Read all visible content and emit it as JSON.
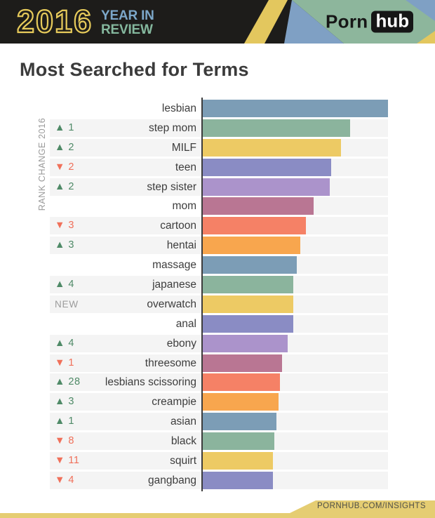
{
  "header": {
    "year": "2016",
    "title_line1": "YEAR IN",
    "title_line2": "REVIEW",
    "logo_porn": "Porn",
    "logo_hub": "hub",
    "colors": {
      "background": "#1d1c1a",
      "year_yellow": "#e7cb5b",
      "year_in_blue": "#7ca7c9",
      "review_green": "#85b89e",
      "deco_green": "#8db69c",
      "deco_blue": "#7fa0c4",
      "deco_yellow": "#e3c75e"
    }
  },
  "page_title": "Most Searched for Terms",
  "footer": {
    "text": "PORNHUB.COM/INSIGHTS",
    "background": "#e5cd72",
    "text_color": "#4f4f47"
  },
  "chart_data": {
    "type": "bar",
    "orientation": "horizontal",
    "title": "Most Searched for Terms",
    "axis_label": "RANK CHANGE 2016",
    "value_meaning": "relative search volume, % of top term (estimated from bar lengths)",
    "xlim": [
      0,
      100
    ],
    "grid": false,
    "track_color": "#f4f4f4",
    "axis_line_color": "#3d3d3d",
    "indicator_colors": {
      "up": "#4f8a67",
      "down": "#f0705a",
      "new": "#9b9b9b"
    },
    "glyphs": {
      "up": "▲",
      "down": "▼",
      "new_label": "NEW"
    },
    "palette": [
      "#7c9db6",
      "#8bb49d",
      "#edca64",
      "#8a8cc4",
      "#ab93cb",
      "#b97693",
      "#f58166",
      "#f8a64e"
    ],
    "rows": [
      {
        "term": "lesbian",
        "rank_change": null,
        "value": 100,
        "color": "#7c9db6"
      },
      {
        "term": "step mom",
        "rank_change": {
          "direction": "up",
          "amount": 1
        },
        "value": 79.5,
        "color": "#8bb49d"
      },
      {
        "term": "MILF",
        "rank_change": {
          "direction": "up",
          "amount": 2
        },
        "value": 74.6,
        "color": "#edca64"
      },
      {
        "term": "teen",
        "rank_change": {
          "direction": "down",
          "amount": 2
        },
        "value": 69.3,
        "color": "#8a8cc4"
      },
      {
        "term": "step sister",
        "rank_change": {
          "direction": "up",
          "amount": 2
        },
        "value": 68.6,
        "color": "#ab93cb"
      },
      {
        "term": "mom",
        "rank_change": null,
        "value": 59.8,
        "color": "#b97693"
      },
      {
        "term": "cartoon",
        "rank_change": {
          "direction": "down",
          "amount": 3
        },
        "value": 55.7,
        "color": "#f58166"
      },
      {
        "term": "hentai",
        "rank_change": {
          "direction": "up",
          "amount": 3
        },
        "value": 52.7,
        "color": "#f8a64e"
      },
      {
        "term": "massage",
        "rank_change": null,
        "value": 50.8,
        "color": "#7c9db6"
      },
      {
        "term": "japanese",
        "rank_change": {
          "direction": "up",
          "amount": 4
        },
        "value": 48.9,
        "color": "#8bb49d"
      },
      {
        "term": "overwatch",
        "rank_change": {
          "direction": "new"
        },
        "value": 48.9,
        "color": "#edca64"
      },
      {
        "term": "anal",
        "rank_change": null,
        "value": 48.9,
        "color": "#8a8cc4"
      },
      {
        "term": "ebony",
        "rank_change": {
          "direction": "up",
          "amount": 4
        },
        "value": 45.8,
        "color": "#ab93cb"
      },
      {
        "term": "threesome",
        "rank_change": {
          "direction": "down",
          "amount": 1
        },
        "value": 42.8,
        "color": "#b97693"
      },
      {
        "term": "lesbians scissoring",
        "rank_change": {
          "direction": "up",
          "amount": 28
        },
        "value": 41.7,
        "color": "#f58166"
      },
      {
        "term": "creampie",
        "rank_change": {
          "direction": "up",
          "amount": 3
        },
        "value": 40.9,
        "color": "#f8a64e"
      },
      {
        "term": "asian",
        "rank_change": {
          "direction": "up",
          "amount": 1
        },
        "value": 39.8,
        "color": "#7c9db6"
      },
      {
        "term": "black",
        "rank_change": {
          "direction": "down",
          "amount": 8
        },
        "value": 38.6,
        "color": "#8bb49d"
      },
      {
        "term": "squirt",
        "rank_change": {
          "direction": "down",
          "amount": 11
        },
        "value": 37.9,
        "color": "#edca64"
      },
      {
        "term": "gangbang",
        "rank_change": {
          "direction": "down",
          "amount": 4
        },
        "value": 37.9,
        "color": "#8a8cc4"
      }
    ]
  }
}
